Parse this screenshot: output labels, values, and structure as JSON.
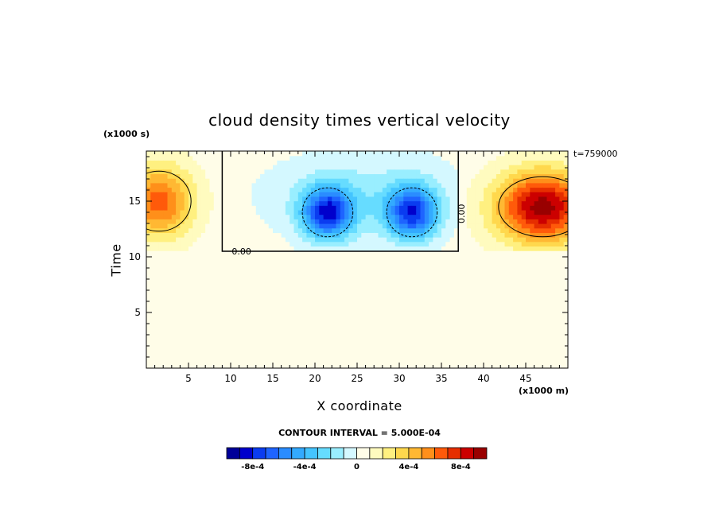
{
  "chart_data": {
    "type": "heatmap",
    "title": "cloud density times vertical velocity",
    "xlabel": "X coordinate",
    "ylabel": "Time",
    "x_units_label": "(x1000 m)",
    "y_units_label": "(x1000 s)",
    "timestamp_label": "t=759000",
    "contour_interval_label": "CONTOUR INTERVAL = 5.000E-04",
    "xlim": [
      0,
      50
    ],
    "ylim": [
      0,
      19.5
    ],
    "x_ticks": [
      5,
      10,
      15,
      20,
      25,
      30,
      35,
      40,
      45
    ],
    "y_ticks": [
      5,
      10,
      15
    ],
    "colorbar": {
      "levels": [
        -0.00095,
        -0.00085,
        -0.00075,
        -0.00065,
        -0.00055,
        -0.00045,
        -0.00035,
        -0.00025,
        -0.00015,
        -5e-05,
        5e-05,
        0.00015,
        0.00025,
        0.00035,
        0.00045,
        0.00055,
        0.00065,
        0.00075,
        0.00085,
        0.00095
      ],
      "colors": [
        "#000099",
        "#0000cc",
        "#0a3cf0",
        "#1e64ff",
        "#2a8cff",
        "#33aaff",
        "#44c4ff",
        "#66dcff",
        "#99eeff",
        "#d4f8ff",
        "#fffde8",
        "#fffbbf",
        "#fff080",
        "#ffd84d",
        "#ffb833",
        "#ff8f1a",
        "#ff5a0a",
        "#e62e00",
        "#cc0000",
        "#990000"
      ],
      "tick_labels": [
        "-8e-4",
        "-4e-4",
        "0",
        "4e-4",
        "8e-4"
      ],
      "tick_values": [
        -0.0008,
        -0.0004,
        0,
        0.0004,
        0.0008
      ]
    },
    "contour_labels": [
      "0.00",
      "0.00"
    ],
    "features": [
      {
        "sign": "positive",
        "x_center": 1.5,
        "y_center": 15,
        "peak": 0.0006
      },
      {
        "sign": "positive",
        "x_center": 47,
        "y_center": 14.5,
        "peak": 0.0009
      },
      {
        "sign": "negative",
        "x_center": 21.5,
        "y_center": 14,
        "peak": -0.0008
      },
      {
        "sign": "negative",
        "x_center": 31.5,
        "y_center": 14,
        "peak": -0.00075
      },
      {
        "sign": "zero-line",
        "x_range": [
          9,
          37
        ],
        "y_range": [
          10.5,
          19.5
        ]
      }
    ]
  }
}
